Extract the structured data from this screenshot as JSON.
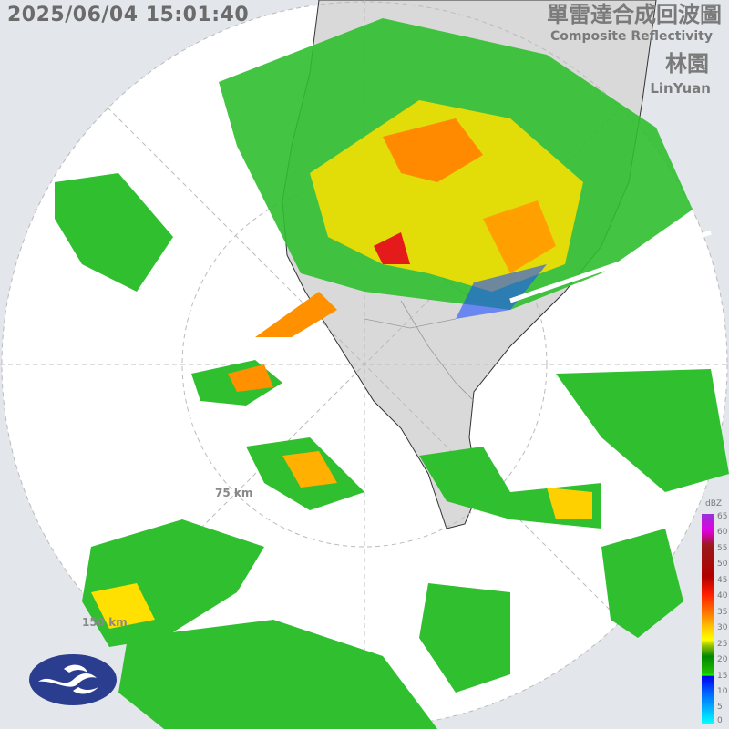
{
  "header": {
    "timestamp": "2025/06/04 15:01:40",
    "title_zh": "單雷達合成回波圖",
    "title_en": "Composite Reflectivity",
    "site_zh": "林園",
    "site_en": "LinYuan"
  },
  "range_rings": [
    "75 km",
    "150 km"
  ],
  "legend": {
    "unit": "dBZ",
    "ticks": [
      "65",
      "60",
      "55",
      "50",
      "45",
      "40",
      "35",
      "30",
      "25",
      "20",
      "15",
      "10",
      "5",
      "0"
    ]
  },
  "colors": {
    "background": "#e3e6ea",
    "radar_disk": "#ffffff",
    "land": "#d6d6d6",
    "logo": "#2b3d8f"
  },
  "logo": {
    "name": "cwa-logo"
  }
}
